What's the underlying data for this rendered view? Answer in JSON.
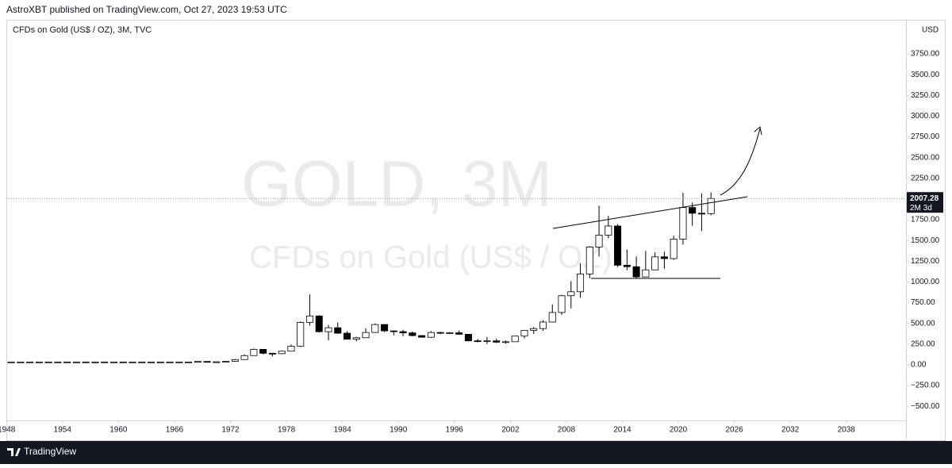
{
  "header": {
    "text": "AstroXBT published on TradingView.com, Oct 27, 2023 19:53 UTC"
  },
  "footer": {
    "brand": "TradingView"
  },
  "chart_data": {
    "type": "candlestick",
    "title": "CFDs on Gold (US$ / OZ), 3M, TVC",
    "watermark": [
      "GOLD, 3M",
      "CFDs on Gold (US$ / OZ)"
    ],
    "currency": "USD",
    "last_price": 2007.28,
    "countdown": "2M 3d",
    "x": [
      1948,
      1949,
      1950,
      1951,
      1952,
      1953,
      1954,
      1955,
      1956,
      1957,
      1958,
      1959,
      1960,
      1961,
      1962,
      1963,
      1964,
      1965,
      1966,
      1967,
      1968,
      1969,
      1970,
      1971,
      1972,
      1973,
      1974,
      1975,
      1976,
      1977,
      1978,
      1979,
      1980,
      1981,
      1982,
      1983,
      1984,
      1985,
      1986,
      1987,
      1988,
      1989,
      1990,
      1991,
      1992,
      1993,
      1994,
      1995,
      1996,
      1997,
      1998,
      1999,
      2000,
      2001,
      2002,
      2003,
      2004,
      2005,
      2006,
      2007,
      2008,
      2009,
      2010,
      2011,
      2012,
      2013,
      2014,
      2015,
      2016,
      2017,
      2018,
      2019,
      2020,
      2021,
      2022,
      2023
    ],
    "open": [
      35,
      35,
      35,
      35,
      35,
      35,
      35,
      35,
      35,
      35,
      35,
      35,
      35,
      35,
      35,
      35,
      35,
      35,
      35,
      35,
      35,
      41,
      35,
      37,
      43,
      64,
      112,
      187,
      140,
      135,
      165,
      226,
      512,
      590,
      400,
      448,
      382,
      309,
      327,
      391,
      487,
      410,
      401,
      386,
      353,
      333,
      391,
      383,
      387,
      369,
      290,
      288,
      290,
      274,
      279,
      347,
      416,
      438,
      517,
      632,
      834,
      882,
      1096,
      1421,
      1565,
      1675,
      1202,
      1184,
      1061,
      1146,
      1303,
      1282,
      1517,
      1898,
      1829,
      1824
    ],
    "high": [
      35,
      35,
      35,
      35,
      35,
      35,
      35,
      35,
      35,
      35,
      35,
      35,
      35,
      35,
      35,
      35,
      35,
      35,
      35,
      35,
      43,
      44,
      39,
      44,
      70,
      127,
      197,
      187,
      141,
      168,
      245,
      524,
      850,
      599,
      481,
      511,
      406,
      340,
      442,
      500,
      487,
      415,
      424,
      403,
      360,
      407,
      397,
      396,
      415,
      369,
      313,
      338,
      316,
      293,
      349,
      417,
      456,
      538,
      730,
      845,
      1011,
      1227,
      1431,
      1920,
      1796,
      1697,
      1392,
      1307,
      1375,
      1358,
      1366,
      1557,
      2075,
      1959,
      2070,
      2081
    ],
    "low": [
      35,
      35,
      35,
      35,
      35,
      35,
      35,
      35,
      35,
      35,
      35,
      35,
      35,
      35,
      35,
      35,
      35,
      35,
      35,
      35,
      35,
      35,
      35,
      37,
      43,
      64,
      112,
      128,
      103,
      130,
      165,
      216,
      474,
      391,
      297,
      374,
      307,
      284,
      326,
      390,
      395,
      356,
      346,
      344,
      330,
      326,
      370,
      372,
      367,
      283,
      273,
      252,
      263,
      255,
      277,
      319,
      373,
      411,
      513,
      603,
      681,
      810,
      1044,
      1308,
      1527,
      1180,
      1142,
      1046,
      1061,
      1146,
      1160,
      1266,
      1451,
      1677,
      1615,
      1805
    ],
    "close": [
      35,
      35,
      35,
      35,
      35,
      35,
      35,
      35,
      35,
      35,
      35,
      35,
      35,
      35,
      35,
      35,
      35,
      35,
      35,
      35,
      41,
      35,
      37,
      43,
      64,
      112,
      187,
      140,
      135,
      165,
      226,
      512,
      590,
      400,
      448,
      382,
      309,
      327,
      391,
      487,
      410,
      401,
      386,
      353,
      333,
      391,
      383,
      387,
      369,
      290,
      288,
      290,
      274,
      279,
      347,
      416,
      438,
      517,
      632,
      834,
      882,
      1096,
      1421,
      1565,
      1675,
      1202,
      1184,
      1061,
      1146,
      1303,
      1282,
      1517,
      1898,
      1829,
      1824,
      2007.28
    ],
    "xlim": [
      1947.3,
      2044.4
    ],
    "xticks": [
      1948,
      1954,
      1960,
      1966,
      1972,
      1978,
      1984,
      1990,
      1996,
      2002,
      2008,
      2014,
      2020,
      2026,
      2032,
      2038
    ],
    "ylim": [
      -670,
      4162
    ],
    "yticks": [
      {
        "value": -500,
        "label": "−500.00"
      },
      {
        "value": -250,
        "label": "−250.00"
      },
      {
        "value": 0,
        "label": "0.00"
      },
      {
        "value": 250,
        "label": "250.00"
      },
      {
        "value": 500,
        "label": "500.00"
      },
      {
        "value": 750,
        "label": "750.00"
      },
      {
        "value": 1000,
        "label": "1000.00"
      },
      {
        "value": 1250,
        "label": "1250.00"
      },
      {
        "value": 1500,
        "label": "1500.00"
      },
      {
        "value": 1750,
        "label": "1750.00"
      },
      {
        "value": 2000,
        "label": "2000.00"
      },
      {
        "value": 2250,
        "label": "2250.00"
      },
      {
        "value": 2500,
        "label": "2500.00"
      },
      {
        "value": 2750,
        "label": "2750.00"
      },
      {
        "value": 3000,
        "label": "3000.00"
      },
      {
        "value": 3250,
        "label": "3250.00"
      },
      {
        "value": 3500,
        "label": "3500.00"
      },
      {
        "value": 3750,
        "label": "3750.00"
      }
    ],
    "up_color": "#ffffff",
    "down_color": "#000000",
    "grid": false
  }
}
